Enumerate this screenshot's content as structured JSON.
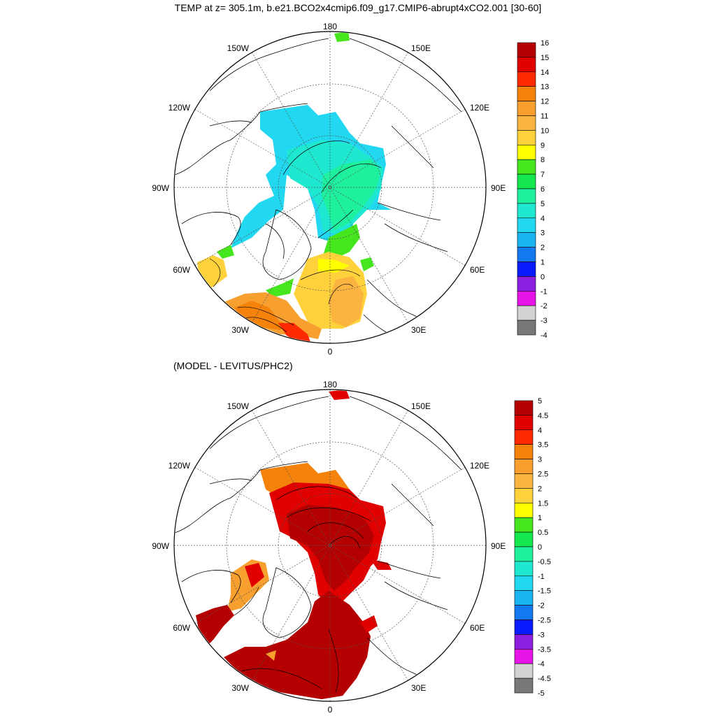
{
  "figure": {
    "title": "TEMP at z= 305.1m, b.e21.BCO2x4cmip6.f09_g17.CMIP6-abrupt4xCO2.001 [30-60]",
    "subtitle": "(MODEL - LEVITUS/PHC2)"
  },
  "lon_labels": {
    "top": "180",
    "bottom": "0",
    "left": "90W",
    "right": "90E",
    "upper_left": "150W",
    "upper_right": "150E",
    "mid_upper_left": "120W",
    "mid_upper_right": "120E",
    "mid_lower_left": "60W",
    "mid_lower_right": "60E",
    "lower_left": "30W",
    "lower_right": "30E"
  },
  "colorbar_top": {
    "labels": [
      "16",
      "15",
      "14",
      "13",
      "12",
      "11",
      "10",
      "9",
      "8",
      "7",
      "6",
      "5",
      "4",
      "3",
      "2",
      "1",
      "0",
      "-1",
      "-2",
      "-3",
      "-4"
    ],
    "colors": [
      "#b40000",
      "#e00000",
      "#ff2a00",
      "#f5820a",
      "#f7a030",
      "#fbb440",
      "#ffd23c",
      "#ffff00",
      "#46e61e",
      "#14e84e",
      "#1ef09e",
      "#1ee8d0",
      "#22d8f0",
      "#1ab4f0",
      "#1478f0",
      "#0a1cff",
      "#8c1ee0",
      "#e614e6",
      "#d2d2d2",
      "#787878"
    ]
  },
  "colorbar_bottom": {
    "labels": [
      "5",
      "4.5",
      "4",
      "3.5",
      "3",
      "2.5",
      "2",
      "1.5",
      "1",
      "0.5",
      "0",
      "-0.5",
      "-1",
      "-1.5",
      "-2",
      "-2.5",
      "-3",
      "-3.5",
      "-4",
      "-4.5",
      "-5"
    ],
    "colors": [
      "#b40000",
      "#e00000",
      "#ff2a00",
      "#f5820a",
      "#f7a030",
      "#fbb440",
      "#ffd23c",
      "#ffff00",
      "#46e61e",
      "#14e84e",
      "#1ef09e",
      "#1ee8d0",
      "#22d8f0",
      "#1ab4f0",
      "#1478f0",
      "#0a1cff",
      "#8c1ee0",
      "#e614e6",
      "#d2d2d2",
      "#787878"
    ]
  }
}
